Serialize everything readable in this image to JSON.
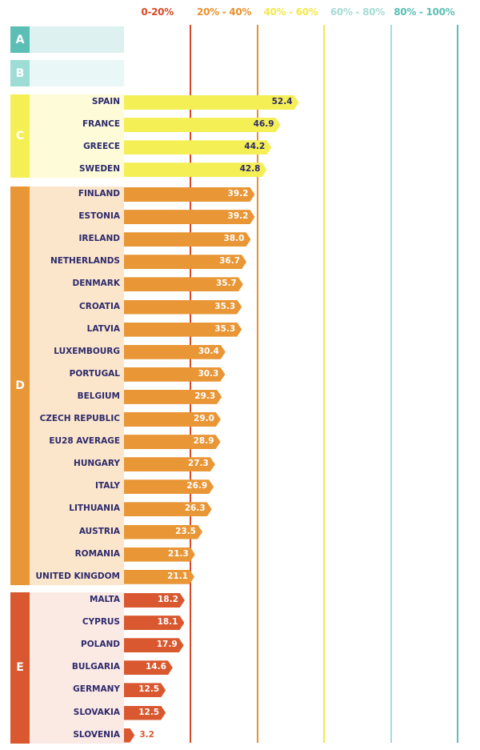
{
  "chart_data": {
    "type": "bar",
    "orientation": "horizontal",
    "xlim": [
      0,
      100
    ],
    "grid": true,
    "bands": [
      {
        "label": "0-20%",
        "color": "#d8492a"
      },
      {
        "label": "20% - 40%",
        "color": "#e8912f"
      },
      {
        "label": "40% - 60%",
        "color": "#f3e84a"
      },
      {
        "label": "60% - 80%",
        "color": "#a6dcd6"
      },
      {
        "label": "80% - 100%",
        "color": "#5bbfb5"
      }
    ],
    "groups": [
      {
        "letter": "A",
        "color": "#5bbfb5",
        "bg": "#dcf1f0",
        "items": []
      },
      {
        "letter": "B",
        "color": "#9edcd6",
        "bg": "#e9f7f6",
        "items": []
      },
      {
        "letter": "C",
        "color": "#f5ef56",
        "bg": "#fdfbd8",
        "value_color": "#2d2a6b",
        "items": [
          {
            "label": "SPAIN",
            "value": 52.4
          },
          {
            "label": "FRANCE",
            "value": 46.9
          },
          {
            "label": "GREECE",
            "value": 44.2
          },
          {
            "label": "SWEDEN",
            "value": 42.8
          }
        ]
      },
      {
        "letter": "D",
        "color": "#e89636",
        "bg": "#fbe6cc",
        "value_color": "#ffffff",
        "items": [
          {
            "label": "FINLAND",
            "value": 39.2
          },
          {
            "label": "ESTONIA",
            "value": 39.2
          },
          {
            "label": "IRELAND",
            "value": 38.0
          },
          {
            "label": "NETHERLANDS",
            "value": 36.7
          },
          {
            "label": "DENMARK",
            "value": 35.7
          },
          {
            "label": "CROATIA",
            "value": 35.3
          },
          {
            "label": "LATVIA",
            "value": 35.3
          },
          {
            "label": "LUXEMBOURG",
            "value": 30.4
          },
          {
            "label": "PORTUGAL",
            "value": 30.3
          },
          {
            "label": "BELGIUM",
            "value": 29.3
          },
          {
            "label": "CZECH REPUBLIC",
            "value": 29.0
          },
          {
            "label": "EU28 AVERAGE",
            "value": 28.9
          },
          {
            "label": "HUNGARY",
            "value": 27.3
          },
          {
            "label": "ITALY",
            "value": 26.9
          },
          {
            "label": "LITHUANIA",
            "value": 26.3
          },
          {
            "label": "AUSTRIA",
            "value": 23.5
          },
          {
            "label": "ROMANIA",
            "value": 21.3
          },
          {
            "label": "UNITED KINGDOM",
            "value": 21.1
          }
        ]
      },
      {
        "letter": "E",
        "color": "#d9582f",
        "bg": "#fbe9e4",
        "value_color": "#ffffff",
        "items": [
          {
            "label": "MALTA",
            "value": 18.2
          },
          {
            "label": "CYPRUS",
            "value": 18.1
          },
          {
            "label": "POLAND",
            "value": 17.9
          },
          {
            "label": "BULGARIA",
            "value": 14.6
          },
          {
            "label": "GERMANY",
            "value": 12.5
          },
          {
            "label": "SLOVAKIA",
            "value": 12.5
          },
          {
            "label": "SLOVENIA",
            "value": 3.2
          }
        ]
      }
    ]
  }
}
